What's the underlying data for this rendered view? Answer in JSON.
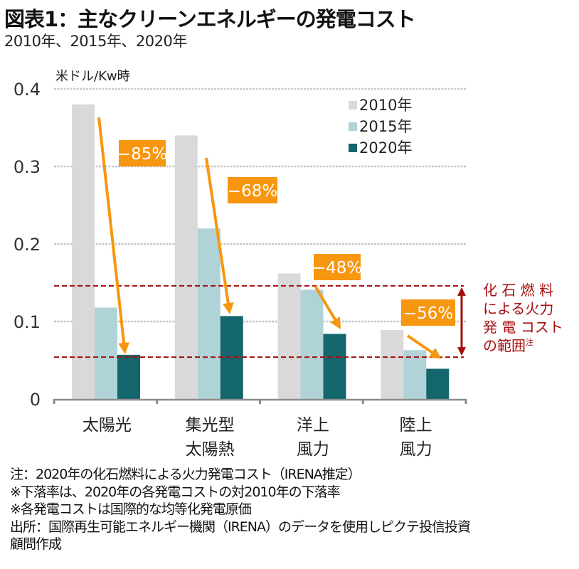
{
  "header": {
    "title": "図表1：主なクリーンエネルギーの発電コスト",
    "subtitle": "2010年、2015年、2020年"
  },
  "chart_data": {
    "type": "bar",
    "title": "図表1：主なクリーンエネルギーの発電コスト",
    "subtitle": "2010年、2015年、2020年",
    "ylabel": "米ドル/Kw時",
    "xlabel": "",
    "ylim": [
      0,
      0.4
    ],
    "yticks": [
      {
        "value": 0,
        "label": "0"
      },
      {
        "value": 0.1,
        "label": "0.1"
      },
      {
        "value": 0.2,
        "label": "0.2"
      },
      {
        "value": 0.3,
        "label": "0.3"
      },
      {
        "value": 0.4,
        "label": "0.4"
      }
    ],
    "grid": true,
    "legend_position": "top-right",
    "categories": [
      [
        "太陽光"
      ],
      [
        "集光型",
        "太陽熱"
      ],
      [
        "洋上",
        "風力"
      ],
      [
        "陸上",
        "風力"
      ]
    ],
    "series": [
      {
        "name": "2010年",
        "color": "#d9d9d9",
        "values": [
          0.38,
          0.34,
          0.162,
          0.089
        ]
      },
      {
        "name": "2015年",
        "color": "#b0d3d7",
        "values": [
          0.118,
          0.22,
          0.141,
          0.063
        ]
      },
      {
        "name": "2020年",
        "color": "#12666c",
        "values": [
          0.057,
          0.107,
          0.084,
          0.039
        ]
      }
    ],
    "annotations": {
      "declines": [
        {
          "category": 0,
          "label": "−85%"
        },
        {
          "category": 1,
          "label": "−68%"
        },
        {
          "category": 2,
          "label": "−48%"
        },
        {
          "category": 3,
          "label": "−56%"
        }
      ],
      "decline_color": "#f7960f",
      "fossil_range": {
        "low": 0.054,
        "high": 0.146,
        "color": "#a50d0d",
        "label_lines": [
          "化 石 燃 料",
          "による火力",
          "発 電 コスト",
          "の範囲"
        ],
        "label_sup": "注"
      }
    }
  },
  "notes": [
    "注：2020年の化石燃料による火力発電コスト（IRENA推定）",
    "※下落率は、2020年の各発電コストの対2010年の下落率",
    "※各発電コストは国際的な均等化発電原価",
    "出所：国際再生可能エネルギー機関（IRENA）のデータを使用しピクテ投信投資",
    "顧問作成"
  ]
}
